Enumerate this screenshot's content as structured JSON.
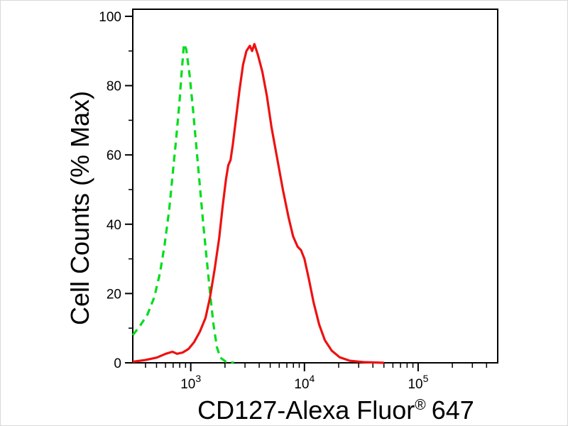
{
  "chart_data": {
    "type": "line",
    "title": "",
    "xlabel": "CD127-Alexa Fluor® 647",
    "xlabel_parts": {
      "main": "CD127-Alexa Fluor",
      "sup": "®",
      "tail": "647"
    },
    "ylabel": "Cell Counts (% Max)",
    "x_scale": "log10",
    "x_range_log10": [
      2.49,
      5.7
    ],
    "ylim": [
      0,
      100
    ],
    "y_major_ticks": [
      0,
      20,
      40,
      60,
      80,
      100
    ],
    "y_minor_ticks": [
      10,
      30,
      50,
      70,
      90
    ],
    "x_major_tick_exponents": [
      3,
      4,
      5
    ],
    "tick_base": "10",
    "axis_color": "#000000",
    "background": "#ffffff",
    "grid": false,
    "legend_position": "none",
    "series": [
      {
        "name": "green-dashed",
        "style": "dashed",
        "color": "#00dd1c",
        "points": [
          [
            2.49,
            8
          ],
          [
            2.55,
            10.5
          ],
          [
            2.62,
            14
          ],
          [
            2.68,
            19
          ],
          [
            2.73,
            26
          ],
          [
            2.77,
            34
          ],
          [
            2.81,
            44
          ],
          [
            2.84,
            54
          ],
          [
            2.87,
            64
          ],
          [
            2.9,
            75
          ],
          [
            2.92,
            84
          ],
          [
            2.94,
            92
          ],
          [
            2.96,
            90.5
          ],
          [
            2.99,
            83
          ],
          [
            3.02,
            73
          ],
          [
            3.05,
            62
          ],
          [
            3.08,
            51
          ],
          [
            3.11,
            40
          ],
          [
            3.14,
            30
          ],
          [
            3.17,
            20
          ],
          [
            3.2,
            11
          ],
          [
            3.23,
            4.5
          ],
          [
            3.26,
            1.5
          ],
          [
            3.31,
            0.3
          ],
          [
            3.38,
            0
          ]
        ]
      },
      {
        "name": "red-solid",
        "style": "solid",
        "color": "#ee1111",
        "points": [
          [
            2.49,
            0.3
          ],
          [
            2.6,
            0.8
          ],
          [
            2.7,
            1.5
          ],
          [
            2.78,
            2.6
          ],
          [
            2.84,
            3.2
          ],
          [
            2.88,
            2.6
          ],
          [
            2.93,
            3.0
          ],
          [
            2.98,
            4.0
          ],
          [
            3.03,
            6.0
          ],
          [
            3.08,
            9.0
          ],
          [
            3.13,
            13
          ],
          [
            3.17,
            19
          ],
          [
            3.21,
            27
          ],
          [
            3.25,
            36
          ],
          [
            3.28,
            45
          ],
          [
            3.31,
            53
          ],
          [
            3.33,
            57
          ],
          [
            3.35,
            58.5
          ],
          [
            3.37,
            63
          ],
          [
            3.4,
            71
          ],
          [
            3.43,
            79
          ],
          [
            3.46,
            86
          ],
          [
            3.49,
            90
          ],
          [
            3.52,
            91.5
          ],
          [
            3.54,
            90
          ],
          [
            3.56,
            92
          ],
          [
            3.59,
            89
          ],
          [
            3.63,
            84
          ],
          [
            3.67,
            77
          ],
          [
            3.71,
            68
          ],
          [
            3.76,
            59
          ],
          [
            3.81,
            50
          ],
          [
            3.86,
            42
          ],
          [
            3.9,
            36.5
          ],
          [
            3.94,
            33.5
          ],
          [
            3.97,
            32.5
          ],
          [
            4.0,
            30
          ],
          [
            4.04,
            24
          ],
          [
            4.08,
            17.5
          ],
          [
            4.13,
            11
          ],
          [
            4.18,
            6.5
          ],
          [
            4.24,
            3.5
          ],
          [
            4.31,
            1.6
          ],
          [
            4.4,
            0.6
          ],
          [
            4.52,
            0.2
          ],
          [
            4.7,
            0
          ]
        ]
      }
    ]
  }
}
